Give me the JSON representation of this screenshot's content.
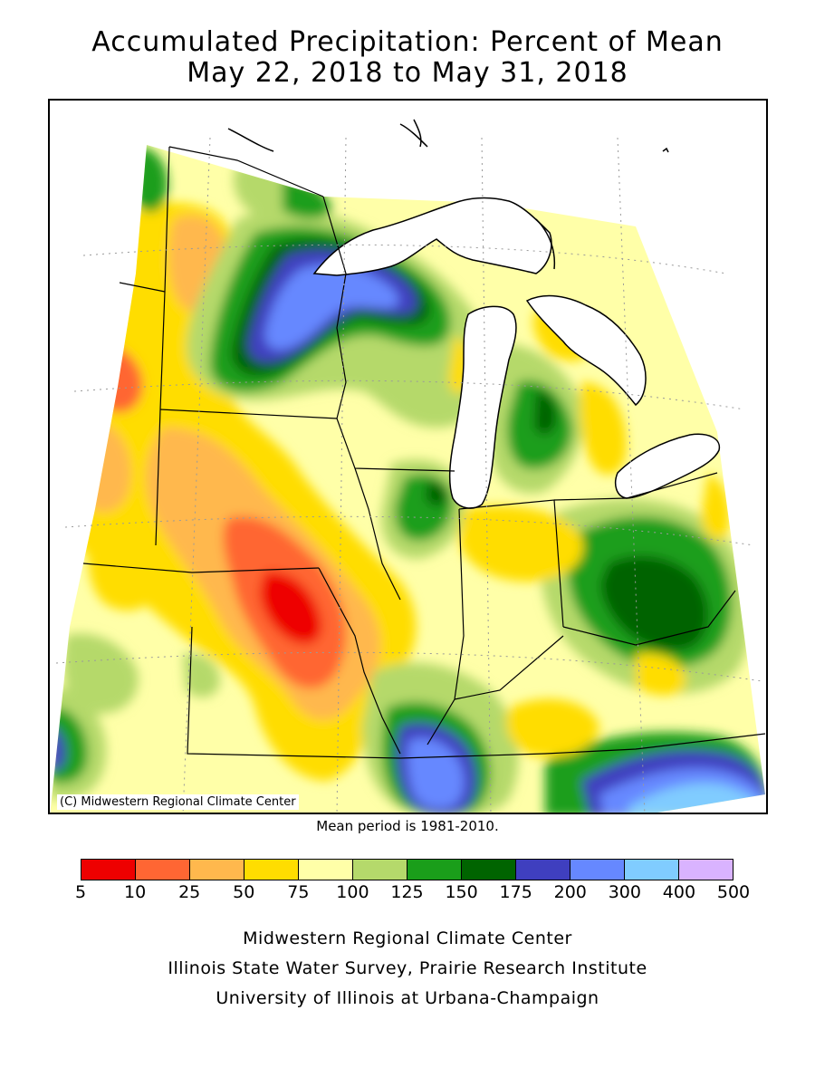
{
  "title": {
    "line1": "Accumulated Precipitation: Percent of Mean",
    "line2": "May 22, 2018 to May 31, 2018"
  },
  "map": {
    "copyright": "(C) Midwestern Regional Climate Center"
  },
  "mean_note": "Mean period is 1981-2010.",
  "legend": {
    "labels": [
      "5",
      "10",
      "25",
      "50",
      "75",
      "100",
      "125",
      "150",
      "175",
      "200",
      "300",
      "400",
      "500"
    ],
    "colors": [
      "#ee0000",
      "#ff6633",
      "#ffb84d",
      "#ffdd00",
      "#ffffa8",
      "#b5d96b",
      "#1a9e1a",
      "#006400",
      "#3f3fbf",
      "#6688ff",
      "#80ccff",
      "#d9b3ff"
    ]
  },
  "credits": {
    "line1": "Midwestern Regional Climate Center",
    "line2": "Illinois State Water Survey, Prairie Research Institute",
    "line3": "University of Illinois at Urbana-Champaign"
  }
}
